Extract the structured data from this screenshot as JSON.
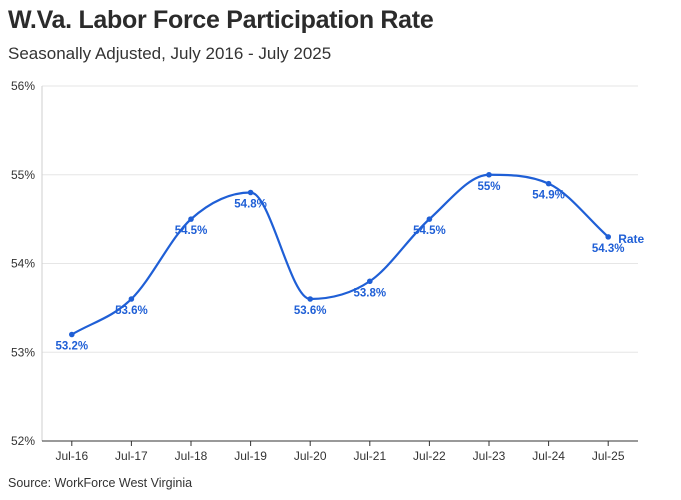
{
  "header": {
    "title": "W.Va. Labor Force Participation Rate",
    "subtitle": "Seasonally Adjusted, July 2016 - July 2025"
  },
  "footer": {
    "source": "Source: WorkForce West Virginia"
  },
  "colors": {
    "series": "#1f5fd6",
    "grid": "#e6e6e6",
    "axis": "#333333"
  },
  "chart_data": {
    "type": "line",
    "title": "W.Va. Labor Force Participation Rate",
    "subtitle": "Seasonally Adjusted, July 2016 - July 2025",
    "xlabel": "",
    "ylabel": "",
    "categories": [
      "Jul-16",
      "Jul-17",
      "Jul-18",
      "Jul-19",
      "Jul-20",
      "Jul-21",
      "Jul-22",
      "Jul-23",
      "Jul-24",
      "Jul-25"
    ],
    "series": [
      {
        "name": "Rate",
        "values": [
          53.2,
          53.6,
          54.5,
          54.8,
          53.6,
          53.8,
          54.5,
          55.0,
          54.9,
          54.3
        ],
        "labels": [
          "53.2%",
          "53.6%",
          "54.5%",
          "54.8%",
          "53.6%",
          "53.8%",
          "54.5%",
          "55%",
          "54.9%",
          "54.3%"
        ]
      }
    ],
    "ylim": [
      52,
      56
    ],
    "yticks": [
      52,
      53,
      54,
      55,
      56
    ],
    "ytick_labels": [
      "52%",
      "53%",
      "54%",
      "55%",
      "56%"
    ],
    "grid": true,
    "legend": "inline-end"
  }
}
